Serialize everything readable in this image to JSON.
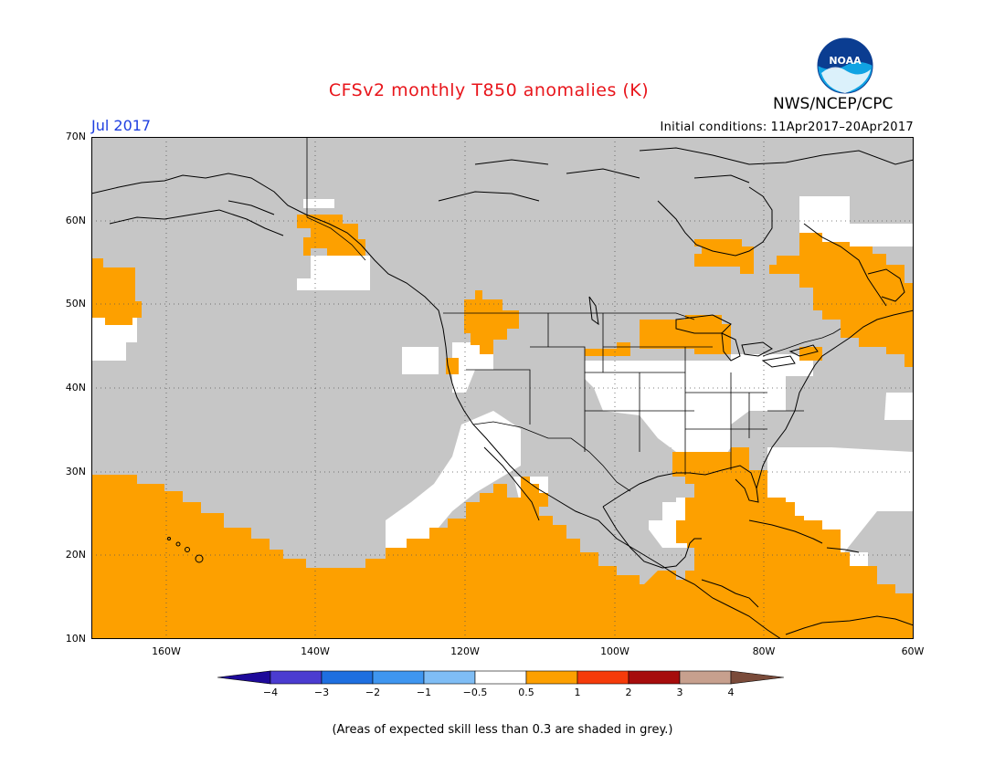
{
  "header": {
    "title": "CFSv2 monthly T850 anomalies (K)",
    "org": "NWS/NCEP/CPC",
    "logo_text": "NOAA",
    "month": "Jul 2017",
    "init_label": "Initial conditions:",
    "init_range": "11Apr2017–20Apr2017"
  },
  "axes": {
    "lat_labels": [
      "70N",
      "60N",
      "50N",
      "40N",
      "30N",
      "20N",
      "10N"
    ],
    "lon_labels": [
      "160W",
      "140W",
      "120W",
      "100W",
      "80W",
      "60W"
    ]
  },
  "colorbar": {
    "labels": [
      "−4",
      "−3",
      "−2",
      "−1",
      "−0.5",
      "0.5",
      "1",
      "2",
      "3",
      "4"
    ],
    "colors": [
      "#1e0a9a",
      "#4b3cd0",
      "#1e6fe0",
      "#3f96f0",
      "#7fbdf5",
      "#ffffff",
      "#fda000",
      "#f53b0a",
      "#a60c0c",
      "#c7a08e",
      "#7a4b3a"
    ]
  },
  "footer": {
    "note": "(Areas of expected skill less than 0.3 are shaded in grey.)"
  },
  "colors": {
    "title": "#e8151b",
    "month": "#1f3fe0",
    "skill_grey": "#c6c6c6",
    "positive_anomaly": "#fda000"
  }
}
